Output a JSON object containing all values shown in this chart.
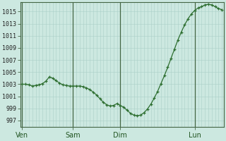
{
  "bg_color": "#cce8e0",
  "grid_color": "#aacfc8",
  "line_color": "#2d6e30",
  "marker_color": "#2d6e30",
  "ylabel_values": [
    997,
    999,
    1001,
    1003,
    1005,
    1007,
    1009,
    1011,
    1013,
    1015
  ],
  "x_tick_labels": [
    "Ven",
    "Sam",
    "Dim",
    "Lun"
  ],
  "ylim": [
    996.0,
    1016.5
  ],
  "pressure_data": [
    [
      0,
      1003.0
    ],
    [
      1,
      1003.0
    ],
    [
      2,
      1002.9
    ],
    [
      3,
      1002.7
    ],
    [
      4,
      1002.8
    ],
    [
      5,
      1002.9
    ],
    [
      6,
      1003.1
    ],
    [
      7,
      1003.5
    ],
    [
      8,
      1004.2
    ],
    [
      9,
      1004.0
    ],
    [
      10,
      1003.6
    ],
    [
      11,
      1003.2
    ],
    [
      12,
      1002.9
    ],
    [
      13,
      1002.8
    ],
    [
      14,
      1002.7
    ],
    [
      15,
      1002.7
    ],
    [
      16,
      1002.7
    ],
    [
      17,
      1002.7
    ],
    [
      18,
      1002.6
    ],
    [
      19,
      1002.4
    ],
    [
      20,
      1002.1
    ],
    [
      21,
      1001.7
    ],
    [
      22,
      1001.2
    ],
    [
      23,
      1000.6
    ],
    [
      24,
      1000.0
    ],
    [
      25,
      999.6
    ],
    [
      26,
      999.4
    ],
    [
      27,
      999.5
    ],
    [
      28,
      999.8
    ],
    [
      29,
      999.5
    ],
    [
      30,
      999.2
    ],
    [
      31,
      998.7
    ],
    [
      32,
      998.2
    ],
    [
      33,
      997.9
    ],
    [
      34,
      997.8
    ],
    [
      35,
      997.9
    ],
    [
      36,
      998.3
    ],
    [
      37,
      998.9
    ],
    [
      38,
      999.7
    ],
    [
      39,
      1000.7
    ],
    [
      40,
      1001.8
    ],
    [
      41,
      1003.1
    ],
    [
      42,
      1004.4
    ],
    [
      43,
      1005.8
    ],
    [
      44,
      1007.3
    ],
    [
      45,
      1008.8
    ],
    [
      46,
      1010.3
    ],
    [
      47,
      1011.6
    ],
    [
      48,
      1012.8
    ],
    [
      49,
      1013.8
    ],
    [
      50,
      1014.6
    ],
    [
      51,
      1015.2
    ],
    [
      52,
      1015.6
    ],
    [
      53,
      1015.8
    ],
    [
      54,
      1016.1
    ],
    [
      55,
      1016.2
    ],
    [
      56,
      1016.1
    ],
    [
      57,
      1015.8
    ],
    [
      58,
      1015.5
    ],
    [
      59,
      1015.3
    ]
  ],
  "n_points": 60,
  "ven_idx": 0,
  "sam_idx": 15,
  "dim_idx": 29,
  "lun_idx": 51
}
